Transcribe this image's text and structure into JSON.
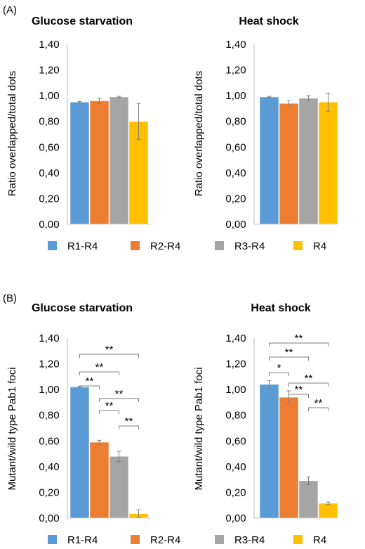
{
  "colors": {
    "R1-R4": "#5b9bd5",
    "R2-R4": "#ed7d31",
    "R3-R4": "#a5a5a5",
    "R4": "#ffc000"
  },
  "legend": [
    {
      "label": "R1-R4",
      "color": "#5b9bd5"
    },
    {
      "label": "R2-R4",
      "color": "#ed7d31"
    },
    {
      "label": "R3-R4",
      "color": "#a5a5a5"
    },
    {
      "label": "R4",
      "color": "#ffc000"
    }
  ],
  "panels": [
    {
      "label": "(A)"
    },
    {
      "label": "(B)"
    }
  ],
  "chart_data": [
    {
      "type": "bar",
      "title": "Glucose starvation",
      "ylabel": "Ratio overlapped/total dots",
      "categories": [
        "R1-R4",
        "R2-R4",
        "R3-R4",
        "R4"
      ],
      "values": [
        0.95,
        0.96,
        0.99,
        0.8
      ],
      "errors": [
        0.005,
        0.02,
        0.005,
        0.14
      ],
      "ylim": [
        0,
        1.4
      ],
      "yticks": [
        "0,00",
        "0,20",
        "0,40",
        "0,60",
        "0,80",
        "1,00",
        "1,20",
        "1,40"
      ],
      "grid": false,
      "significance": []
    },
    {
      "type": "bar",
      "title": "Heat shock",
      "ylabel": "Ratio overlapped/total dots",
      "categories": [
        "R1-R4",
        "R2-R4",
        "R3-R4",
        "R4"
      ],
      "values": [
        0.99,
        0.94,
        0.98,
        0.95
      ],
      "errors": [
        0.005,
        0.02,
        0.02,
        0.07
      ],
      "ylim": [
        0,
        1.4
      ],
      "yticks": [
        "0,00",
        "0,20",
        "0,40",
        "0,60",
        "0,80",
        "1,00",
        "1,20",
        "1,40"
      ],
      "grid": false,
      "significance": []
    },
    {
      "type": "bar",
      "title": "Glucose starvation",
      "ylabel": "Mutant/wild type Pab1 foci",
      "categories": [
        "R1-R4",
        "R2-R4",
        "R3-R4",
        "R4"
      ],
      "values": [
        1.02,
        0.59,
        0.48,
        0.035
      ],
      "errors": [
        0.005,
        0.015,
        0.04,
        0.03
      ],
      "ylim": [
        0,
        1.4
      ],
      "yticks": [
        "0,00",
        "0,20",
        "0,40",
        "0,60",
        "0,80",
        "1,00",
        "1,20",
        "1,40"
      ],
      "grid": false,
      "significance": [
        {
          "from": 0,
          "to": 1,
          "label": "**"
        },
        {
          "from": 0,
          "to": 2,
          "label": "**"
        },
        {
          "from": 0,
          "to": 3,
          "label": "**"
        },
        {
          "from": 1,
          "to": 2,
          "label": "**"
        },
        {
          "from": 1,
          "to": 3,
          "label": "**"
        },
        {
          "from": 2,
          "to": 3,
          "label": "**"
        }
      ]
    },
    {
      "type": "bar",
      "title": "Heat shock",
      "ylabel": "Mutant/wild type Pab1 foci",
      "categories": [
        "R1-R4",
        "R2-R4",
        "R3-R4",
        "R4"
      ],
      "values": [
        1.04,
        0.94,
        0.29,
        0.115
      ],
      "errors": [
        0.03,
        0.05,
        0.03,
        0.01
      ],
      "ylim": [
        0,
        1.4
      ],
      "yticks": [
        "0,00",
        "0,20",
        "0,40",
        "0,60",
        "0,80",
        "1,00",
        "1,20",
        "1,40"
      ],
      "grid": false,
      "significance": [
        {
          "from": 0,
          "to": 1,
          "label": "*"
        },
        {
          "from": 0,
          "to": 2,
          "label": "**"
        },
        {
          "from": 0,
          "to": 3,
          "label": "**"
        },
        {
          "from": 1,
          "to": 2,
          "label": "**"
        },
        {
          "from": 1,
          "to": 3,
          "label": "**"
        },
        {
          "from": 2,
          "to": 3,
          "label": "**"
        }
      ]
    }
  ]
}
